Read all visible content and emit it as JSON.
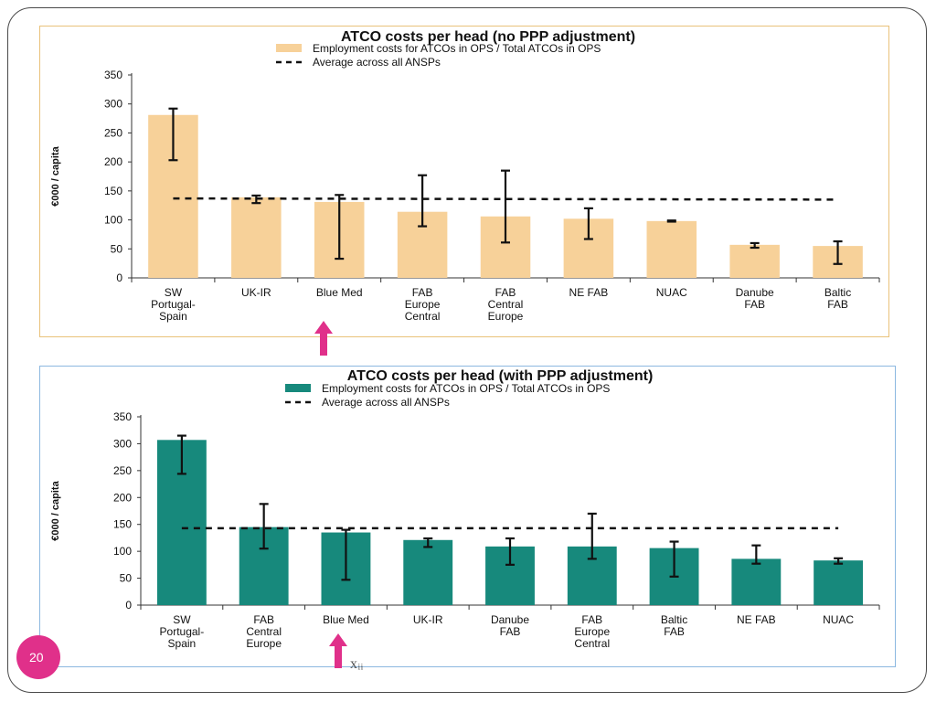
{
  "colors": {
    "top_bar": "#f7d199",
    "bottom_bar": "#17897c",
    "arrow": "#e0308a",
    "badge": "#e0308a",
    "top_border": "#e9c27a",
    "bottom_border": "#8cb8e0"
  },
  "icons": [
    "arrow-up-icon"
  ],
  "footer": {
    "badge_text": "20",
    "text": "xᵢᵢ"
  },
  "chart_data": [
    {
      "type": "bar",
      "title": "ATCO costs per head (no PPP adjustment)",
      "legend": {
        "placement": "top",
        "bar_label": "Employment costs for ATCOs in OPS / Total ATCOs in OPS",
        "line_label": "Average across all ANSPs"
      },
      "ylabel": "€000 / capita",
      "ylim": [
        0,
        350
      ],
      "yticks": [
        "0",
        "50",
        "100",
        "150",
        "200",
        "250",
        "300",
        "350"
      ],
      "categories": [
        [
          "SW",
          "Portugal-",
          "Spain"
        ],
        [
          "UK-IR"
        ],
        [
          "Blue Med"
        ],
        [
          "FAB",
          "Europe",
          "Central"
        ],
        [
          "FAB",
          "Central",
          "Europe"
        ],
        [
          "NE FAB"
        ],
        [
          "NUAC"
        ],
        [
          "Danube",
          "FAB"
        ],
        [
          "Baltic",
          "FAB"
        ]
      ],
      "values": [
        281,
        139,
        131,
        114,
        106,
        102,
        98,
        57,
        55
      ],
      "error_low": [
        203,
        129,
        33,
        89,
        61,
        67,
        97,
        52,
        24
      ],
      "error_high": [
        292,
        142,
        143,
        177,
        185,
        120,
        99,
        60,
        63
      ],
      "average": 137,
      "average_end": 135
    },
    {
      "type": "bar",
      "title": "ATCO costs per head (with PPP adjustment)",
      "legend": {
        "placement": "top",
        "bar_label": "Employment costs for ATCOs in OPS / Total ATCOs in OPS",
        "line_label": "Average across all ANSPs"
      },
      "ylabel": "€000 / capita",
      "ylim": [
        0,
        350
      ],
      "yticks": [
        "0",
        "50",
        "100",
        "150",
        "200",
        "250",
        "300",
        "350"
      ],
      "categories": [
        [
          "SW",
          "Portugal-",
          "Spain"
        ],
        [
          "FAB",
          "Central",
          "Europe"
        ],
        [
          "Blue Med"
        ],
        [
          "UK-IR"
        ],
        [
          "Danube",
          "FAB"
        ],
        [
          "FAB",
          "Europe",
          "Central"
        ],
        [
          "Baltic",
          "FAB"
        ],
        [
          "NE FAB"
        ],
        [
          "NUAC"
        ]
      ],
      "values": [
        307,
        145,
        135,
        121,
        109,
        109,
        106,
        86,
        83
      ],
      "error_low": [
        244,
        105,
        47,
        108,
        75,
        86,
        53,
        77,
        77
      ],
      "error_high": [
        315,
        188,
        140,
        124,
        124,
        170,
        118,
        111,
        87
      ],
      "average": 143,
      "average_end": 143
    }
  ]
}
